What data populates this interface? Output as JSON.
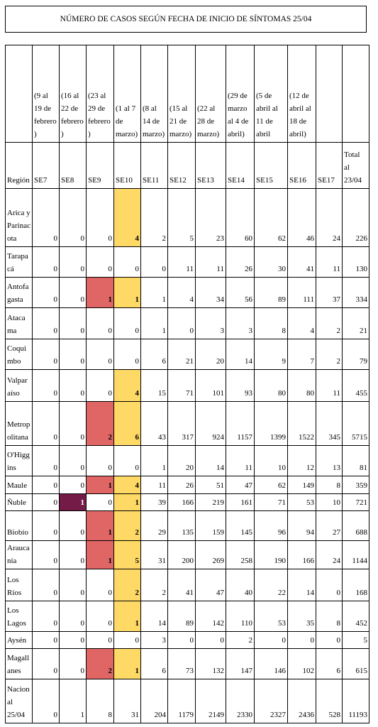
{
  "header": {
    "title": "NÚMERO DE CASOS SEGÚN FECHA DE INICIO DE SÍNTOMAS 25/04"
  },
  "table": {
    "date_ranges": [
      "(9 al 19 de febrero)",
      "(16 al 22 de febrero)",
      "(23 al 29 de febrero)",
      "(1 al 7 de marzo)",
      "(8 al 14 de marzo)",
      "(15 al 21 de marzo)",
      "(22 al 28 de marzo)",
      "(29 de marzo al 4 de abril)",
      "(5 de abril al 11 de abril",
      "(12 de abril al 18 de abril)"
    ],
    "headers": [
      "Región",
      "SE7",
      "SE8",
      "SE9",
      "SE10",
      "SE11",
      "SE12",
      "SE13",
      "SE14",
      "SE15",
      "SE16",
      "SE17",
      "Total al 23/04"
    ],
    "rows": [
      [
        "Arica y Parinacota",
        0,
        0,
        0,
        4,
        2,
        5,
        23,
        60,
        62,
        46,
        24,
        226
      ],
      [
        "Tarapacá",
        0,
        0,
        0,
        0,
        0,
        11,
        11,
        26,
        30,
        41,
        11,
        130
      ],
      [
        "Antofagasta",
        0,
        0,
        1,
        1,
        1,
        4,
        34,
        56,
        89,
        111,
        37,
        334
      ],
      [
        "Atacama",
        0,
        0,
        0,
        0,
        1,
        0,
        3,
        3,
        8,
        4,
        2,
        21
      ],
      [
        "Coquimbo",
        0,
        0,
        0,
        0,
        6,
        21,
        20,
        14,
        9,
        7,
        2,
        79
      ],
      [
        "Valparaíso",
        0,
        0,
        0,
        4,
        15,
        71,
        101,
        93,
        80,
        80,
        11,
        455
      ],
      [
        "Metropolitana",
        0,
        0,
        2,
        6,
        43,
        317,
        924,
        1157,
        1399,
        1522,
        345,
        5715
      ],
      [
        "O'Higgins",
        0,
        0,
        0,
        0,
        1,
        20,
        14,
        11,
        10,
        12,
        13,
        81
      ],
      [
        "Maule",
        0,
        0,
        1,
        4,
        11,
        26,
        51,
        47,
        62,
        149,
        8,
        359
      ],
      [
        "Ñuble",
        0,
        1,
        0,
        1,
        39,
        166,
        219,
        161,
        71,
        53,
        10,
        721
      ],
      [
        "Biobío",
        0,
        0,
        1,
        2,
        29,
        135,
        159,
        145,
        96,
        94,
        27,
        688
      ],
      [
        "Araucanía",
        0,
        0,
        1,
        5,
        31,
        200,
        269,
        258,
        190,
        166,
        24,
        1144
      ],
      [
        "Los Ríos",
        0,
        0,
        0,
        2,
        2,
        41,
        47,
        40,
        22,
        14,
        0,
        168
      ],
      [
        "Los Lagos",
        0,
        0,
        0,
        1,
        14,
        89,
        142,
        110,
        53,
        35,
        8,
        452
      ],
      [
        "Aysén",
        0,
        0,
        0,
        0,
        3,
        0,
        0,
        2,
        0,
        0,
        0,
        5
      ],
      [
        "Magallanes",
        0,
        0,
        2,
        1,
        6,
        73,
        132,
        147,
        146,
        102,
        6,
        615
      ],
      [
        "Nacional 25/04",
        0,
        1,
        8,
        31,
        204,
        1179,
        2149,
        2330,
        2327,
        2436,
        528,
        11193
      ]
    ]
  }
}
